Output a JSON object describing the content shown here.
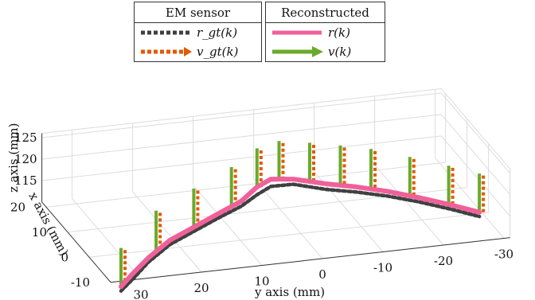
{
  "legend": {
    "em_sensor": {
      "title": "EM sensor",
      "r_label": "r_gt(k)",
      "v_label": "v_gt(k)"
    },
    "reconstructed": {
      "title": "Reconstructed",
      "r_label": "r(k)",
      "v_label": "v(k)"
    }
  },
  "colors": {
    "r_gt": "#404040",
    "v_gt": "#e05a00",
    "r": "#f0609a",
    "v": "#6aaa2a"
  },
  "chart_data": {
    "type": "line3d",
    "xlabel": "x axis (mm)",
    "ylabel": "y axis (mm)",
    "zlabel": "z axis (mm)",
    "x_ticks": [
      "20",
      "10",
      "0",
      "-10"
    ],
    "y_ticks": [
      "30",
      "20",
      "10",
      "0",
      "-10",
      "-20",
      "-30"
    ],
    "z_ticks": [
      "125",
      "120",
      "115"
    ],
    "grid": true,
    "series": [
      {
        "name": "r_gt(k)",
        "style": "dotted",
        "points_yxz": [
          [
            34,
            -12,
            109
          ],
          [
            31,
            -9,
            109.5
          ],
          [
            27,
            -5,
            110.5
          ],
          [
            22,
            -1,
            111.5
          ],
          [
            17,
            2,
            112
          ],
          [
            12,
            5,
            112.5
          ],
          [
            7,
            8,
            112.8
          ],
          [
            3,
            12,
            112.5
          ],
          [
            0,
            14,
            112.8
          ],
          [
            -3,
            12,
            114
          ],
          [
            -7,
            8,
            114.5
          ],
          [
            -11,
            5,
            115
          ],
          [
            -15,
            2,
            115.2
          ],
          [
            -19,
            -1,
            115
          ],
          [
            -23,
            -4,
            114.5
          ],
          [
            -27,
            -7,
            113.8
          ]
        ]
      },
      {
        "name": "r(k)",
        "style": "solid",
        "points_yxz": [
          [
            34,
            -12,
            110
          ],
          [
            31,
            -9,
            110.8
          ],
          [
            27,
            -5,
            111.5
          ],
          [
            22,
            -1,
            112.5
          ],
          [
            17,
            2,
            113
          ],
          [
            12,
            5,
            113.5
          ],
          [
            7,
            8,
            114
          ],
          [
            3,
            12,
            114.3
          ],
          [
            0,
            14,
            114.5
          ],
          [
            -3,
            12,
            115.2
          ],
          [
            -7,
            8,
            115.8
          ],
          [
            -11,
            5,
            116.2
          ],
          [
            -15,
            2,
            116.3
          ],
          [
            -19,
            -1,
            116
          ],
          [
            -23,
            -4,
            115.5
          ],
          [
            -27,
            -7,
            114.8
          ]
        ]
      }
    ],
    "velocity_vectors": [
      {
        "name": "v_gt(k)",
        "style": "dotted",
        "bases_yxz": [
          [
            34,
            -12,
            110
          ],
          [
            25,
            -3,
            112
          ],
          [
            17,
            2,
            113
          ],
          [
            9,
            7,
            113.8
          ],
          [
            3,
            12,
            114.3
          ],
          [
            -1,
            13,
            114.8
          ],
          [
            -5,
            10,
            115.5
          ],
          [
            -9,
            7,
            116
          ],
          [
            -13,
            4,
            116.3
          ],
          [
            -18,
            0,
            116
          ],
          [
            -23,
            -4,
            115.5
          ],
          [
            -27,
            -7,
            114.8
          ]
        ],
        "length_mm": 9
      },
      {
        "name": "v(k)",
        "style": "solid",
        "bases_yxz": [
          [
            34,
            -12,
            110
          ],
          [
            25,
            -3,
            112
          ],
          [
            17,
            2,
            113
          ],
          [
            9,
            7,
            113.8
          ],
          [
            3,
            12,
            114.3
          ],
          [
            -1,
            13,
            114.8
          ],
          [
            -5,
            10,
            115.5
          ],
          [
            -9,
            7,
            116
          ],
          [
            -13,
            4,
            116.3
          ],
          [
            -18,
            0,
            116
          ],
          [
            -23,
            -4,
            115.5
          ],
          [
            -27,
            -7,
            114.8
          ]
        ],
        "length_mm": 9
      }
    ]
  }
}
